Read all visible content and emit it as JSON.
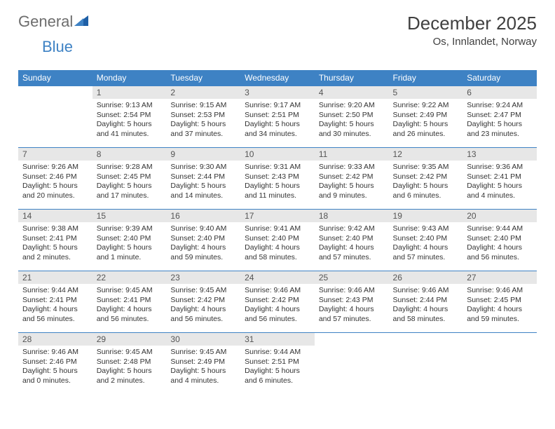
{
  "brand": {
    "part1": "General",
    "part2": "Blue"
  },
  "title": "December 2025",
  "location": "Os, Innlandet, Norway",
  "colors": {
    "header_bg": "#3e82c4",
    "header_text": "#ffffff",
    "daynum_bg": "#e7e7e7",
    "row_border": "#3e82c4",
    "body_text": "#333333",
    "logo_gray": "#6d6d6d",
    "logo_blue": "#3e82c4"
  },
  "weekdays": [
    "Sunday",
    "Monday",
    "Tuesday",
    "Wednesday",
    "Thursday",
    "Friday",
    "Saturday"
  ],
  "weeks": [
    [
      null,
      {
        "n": "1",
        "sr": "Sunrise: 9:13 AM",
        "ss": "Sunset: 2:54 PM",
        "dl": "Daylight: 5 hours and 41 minutes."
      },
      {
        "n": "2",
        "sr": "Sunrise: 9:15 AM",
        "ss": "Sunset: 2:53 PM",
        "dl": "Daylight: 5 hours and 37 minutes."
      },
      {
        "n": "3",
        "sr": "Sunrise: 9:17 AM",
        "ss": "Sunset: 2:51 PM",
        "dl": "Daylight: 5 hours and 34 minutes."
      },
      {
        "n": "4",
        "sr": "Sunrise: 9:20 AM",
        "ss": "Sunset: 2:50 PM",
        "dl": "Daylight: 5 hours and 30 minutes."
      },
      {
        "n": "5",
        "sr": "Sunrise: 9:22 AM",
        "ss": "Sunset: 2:49 PM",
        "dl": "Daylight: 5 hours and 26 minutes."
      },
      {
        "n": "6",
        "sr": "Sunrise: 9:24 AM",
        "ss": "Sunset: 2:47 PM",
        "dl": "Daylight: 5 hours and 23 minutes."
      }
    ],
    [
      {
        "n": "7",
        "sr": "Sunrise: 9:26 AM",
        "ss": "Sunset: 2:46 PM",
        "dl": "Daylight: 5 hours and 20 minutes."
      },
      {
        "n": "8",
        "sr": "Sunrise: 9:28 AM",
        "ss": "Sunset: 2:45 PM",
        "dl": "Daylight: 5 hours and 17 minutes."
      },
      {
        "n": "9",
        "sr": "Sunrise: 9:30 AM",
        "ss": "Sunset: 2:44 PM",
        "dl": "Daylight: 5 hours and 14 minutes."
      },
      {
        "n": "10",
        "sr": "Sunrise: 9:31 AM",
        "ss": "Sunset: 2:43 PM",
        "dl": "Daylight: 5 hours and 11 minutes."
      },
      {
        "n": "11",
        "sr": "Sunrise: 9:33 AM",
        "ss": "Sunset: 2:42 PM",
        "dl": "Daylight: 5 hours and 9 minutes."
      },
      {
        "n": "12",
        "sr": "Sunrise: 9:35 AM",
        "ss": "Sunset: 2:42 PM",
        "dl": "Daylight: 5 hours and 6 minutes."
      },
      {
        "n": "13",
        "sr": "Sunrise: 9:36 AM",
        "ss": "Sunset: 2:41 PM",
        "dl": "Daylight: 5 hours and 4 minutes."
      }
    ],
    [
      {
        "n": "14",
        "sr": "Sunrise: 9:38 AM",
        "ss": "Sunset: 2:41 PM",
        "dl": "Daylight: 5 hours and 2 minutes."
      },
      {
        "n": "15",
        "sr": "Sunrise: 9:39 AM",
        "ss": "Sunset: 2:40 PM",
        "dl": "Daylight: 5 hours and 1 minute."
      },
      {
        "n": "16",
        "sr": "Sunrise: 9:40 AM",
        "ss": "Sunset: 2:40 PM",
        "dl": "Daylight: 4 hours and 59 minutes."
      },
      {
        "n": "17",
        "sr": "Sunrise: 9:41 AM",
        "ss": "Sunset: 2:40 PM",
        "dl": "Daylight: 4 hours and 58 minutes."
      },
      {
        "n": "18",
        "sr": "Sunrise: 9:42 AM",
        "ss": "Sunset: 2:40 PM",
        "dl": "Daylight: 4 hours and 57 minutes."
      },
      {
        "n": "19",
        "sr": "Sunrise: 9:43 AM",
        "ss": "Sunset: 2:40 PM",
        "dl": "Daylight: 4 hours and 57 minutes."
      },
      {
        "n": "20",
        "sr": "Sunrise: 9:44 AM",
        "ss": "Sunset: 2:40 PM",
        "dl": "Daylight: 4 hours and 56 minutes."
      }
    ],
    [
      {
        "n": "21",
        "sr": "Sunrise: 9:44 AM",
        "ss": "Sunset: 2:41 PM",
        "dl": "Daylight: 4 hours and 56 minutes."
      },
      {
        "n": "22",
        "sr": "Sunrise: 9:45 AM",
        "ss": "Sunset: 2:41 PM",
        "dl": "Daylight: 4 hours and 56 minutes."
      },
      {
        "n": "23",
        "sr": "Sunrise: 9:45 AM",
        "ss": "Sunset: 2:42 PM",
        "dl": "Daylight: 4 hours and 56 minutes."
      },
      {
        "n": "24",
        "sr": "Sunrise: 9:46 AM",
        "ss": "Sunset: 2:42 PM",
        "dl": "Daylight: 4 hours and 56 minutes."
      },
      {
        "n": "25",
        "sr": "Sunrise: 9:46 AM",
        "ss": "Sunset: 2:43 PM",
        "dl": "Daylight: 4 hours and 57 minutes."
      },
      {
        "n": "26",
        "sr": "Sunrise: 9:46 AM",
        "ss": "Sunset: 2:44 PM",
        "dl": "Daylight: 4 hours and 58 minutes."
      },
      {
        "n": "27",
        "sr": "Sunrise: 9:46 AM",
        "ss": "Sunset: 2:45 PM",
        "dl": "Daylight: 4 hours and 59 minutes."
      }
    ],
    [
      {
        "n": "28",
        "sr": "Sunrise: 9:46 AM",
        "ss": "Sunset: 2:46 PM",
        "dl": "Daylight: 5 hours and 0 minutes."
      },
      {
        "n": "29",
        "sr": "Sunrise: 9:45 AM",
        "ss": "Sunset: 2:48 PM",
        "dl": "Daylight: 5 hours and 2 minutes."
      },
      {
        "n": "30",
        "sr": "Sunrise: 9:45 AM",
        "ss": "Sunset: 2:49 PM",
        "dl": "Daylight: 5 hours and 4 minutes."
      },
      {
        "n": "31",
        "sr": "Sunrise: 9:44 AM",
        "ss": "Sunset: 2:51 PM",
        "dl": "Daylight: 5 hours and 6 minutes."
      },
      null,
      null,
      null
    ]
  ]
}
